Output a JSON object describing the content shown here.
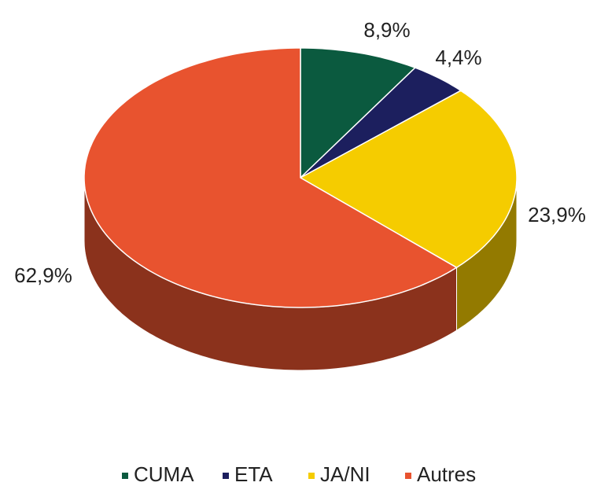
{
  "chart_data": {
    "type": "pie",
    "categories": [
      "CUMA",
      "ETA",
      "JA/NI",
      "Autres"
    ],
    "values": [
      8.9,
      4.4,
      23.9,
      62.9
    ],
    "value_labels": [
      "8,9%",
      "4,4%",
      "23,9%",
      "62,9%"
    ],
    "colors": [
      "#0b5a3f",
      "#1c1f5e",
      "#f5cc00",
      "#e8532f"
    ],
    "legend": "bottom"
  }
}
